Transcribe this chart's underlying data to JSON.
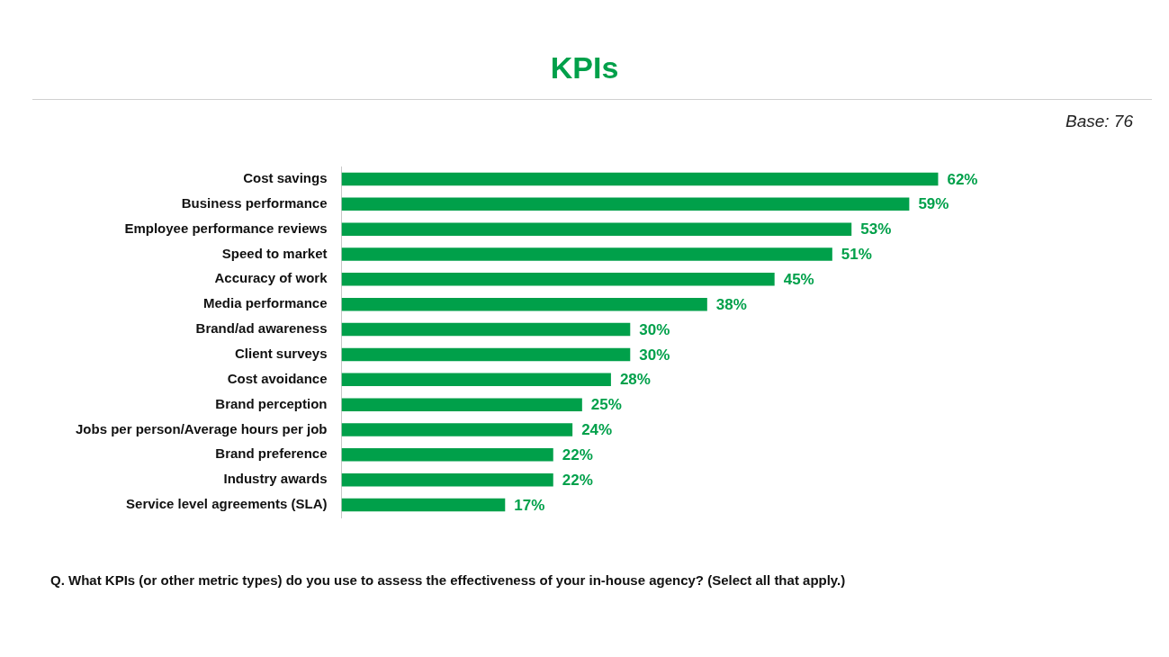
{
  "chart_data": {
    "type": "bar",
    "orientation": "horizontal",
    "title": "KPIs",
    "categories": [
      "Cost savings",
      "Business performance",
      "Employee performance reviews",
      "Speed to market",
      "Accuracy of work",
      "Media performance",
      "Brand/ad awareness",
      "Client surveys",
      "Cost avoidance",
      "Brand perception",
      "Jobs per person/Average hours per job",
      "Brand preference",
      "Industry awards",
      "Service level agreements (SLA)"
    ],
    "values": [
      62,
      59,
      53,
      51,
      45,
      38,
      30,
      30,
      28,
      25,
      24,
      22,
      22,
      17
    ],
    "value_labels": [
      "62%",
      "59%",
      "53%",
      "51%",
      "45%",
      "38%",
      "30%",
      "30%",
      "28%",
      "25%",
      "24%",
      "22%",
      "22%",
      "17%"
    ],
    "color": "#00a04a",
    "grid": false,
    "legend": false,
    "annotations": [
      "Base: 76",
      "Q. What KPIs (or other metric types) do you use to assess the effectiveness of your in-house agency? (Select all that apply.)"
    ]
  }
}
